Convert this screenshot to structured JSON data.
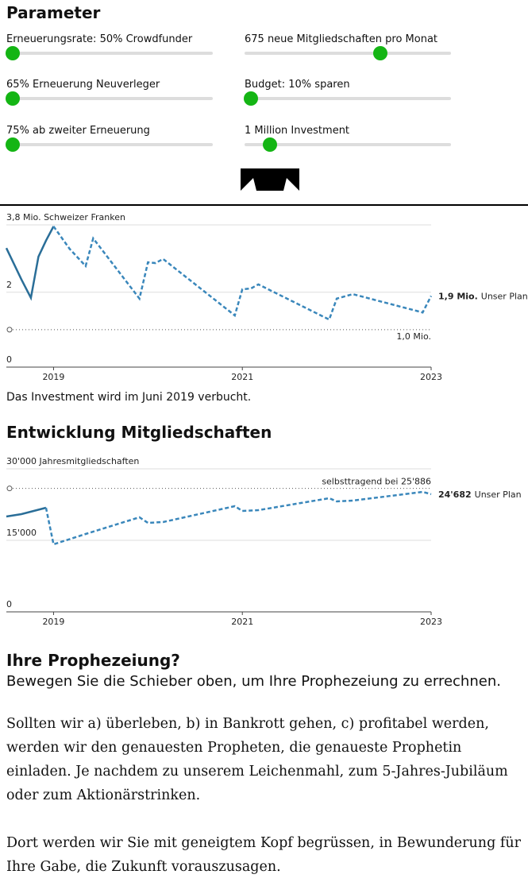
{
  "header": {
    "title": "Parameter"
  },
  "sliders": [
    {
      "label": "Erneuerungsrate: 50% Crowdfunder"
    },
    {
      "label": "675 neue Mitgliedschaften pro Monat"
    },
    {
      "label": "65% Erneuerung Neuverleger"
    },
    {
      "label": "Budget: 10% sparen"
    },
    {
      "label": "75% ab zweiter Erneuerung"
    },
    {
      "label": "1 Million Investment"
    }
  ],
  "chart_data": [
    {
      "type": "line",
      "xlim": [
        2018.5,
        2023
      ],
      "xticks": [
        2019,
        2021,
        2023
      ],
      "ylim": [
        0,
        3.8
      ],
      "yticks": [
        {
          "value": 3.8,
          "label": "3,8 Mio. Schweizer Franken"
        },
        2,
        0
      ],
      "grid": true,
      "reference_line": {
        "value": 1.0,
        "label": "1,0 Mio.",
        "label_position": "below"
      },
      "series": [
        {
          "color": "#2a6e98",
          "line_style": "solid",
          "x": [
            2018.5,
            2018.66,
            2018.76,
            2018.84,
            2018.92,
            2019.0
          ],
          "values": [
            3.18,
            2.34,
            1.85,
            2.95,
            3.38,
            3.76
          ]
        },
        {
          "name": "Unser Plan",
          "color": "#3a87bb",
          "line_style": "dashed",
          "x": [
            2019.0,
            2019.17,
            2019.34,
            2019.42,
            2019.91,
            2020.0,
            2020.08,
            2020.16,
            2020.92,
            2021.0,
            2021.09,
            2021.17,
            2021.92,
            2022.0,
            2022.17,
            2022.91,
            2023.0
          ],
          "values": [
            3.76,
            3.16,
            2.7,
            3.44,
            1.83,
            2.8,
            2.78,
            2.89,
            1.38,
            2.08,
            2.1,
            2.21,
            1.27,
            1.83,
            1.95,
            1.46,
            1.9
          ],
          "value_labels": [
            null,
            null,
            null,
            null,
            null,
            null,
            null,
            null,
            null,
            null,
            null,
            null,
            null,
            null,
            null,
            null,
            "1,9 Mio."
          ]
        }
      ],
      "caption": "Das Investment wird im Juni 2019 verbucht."
    },
    {
      "type": "line",
      "title": "Entwicklung Mitgliedschaften",
      "xlim": [
        2018.5,
        2023
      ],
      "xticks": [
        2019,
        2021,
        2023
      ],
      "ylim": [
        0,
        30000
      ],
      "yticks": [
        {
          "value": 30000,
          "label": "30'000 Jahresmitgliedschaften"
        },
        {
          "value": 15000,
          "label": "15'000"
        },
        0
      ],
      "grid": true,
      "reference_line": {
        "value": 25886,
        "label": "selbsttragend bei 25'886",
        "label_position": "above"
      },
      "series": [
        {
          "color": "#2a6e98",
          "line_style": "solid",
          "x": [
            2018.5,
            2018.66,
            2018.92
          ],
          "values": [
            20000,
            20500,
            21833
          ]
        },
        {
          "name": "Unser Plan",
          "color": "#3a87bb",
          "line_style": "dashed",
          "x": [
            2018.92,
            2019.0,
            2019.34,
            2019.91,
            2020.0,
            2020.16,
            2020.92,
            2021.0,
            2021.17,
            2021.92,
            2022.0,
            2022.17,
            2022.91,
            2023.0
          ],
          "values": [
            21833,
            14167,
            16333,
            19833,
            18667,
            18833,
            22167,
            21167,
            21333,
            23833,
            23167,
            23333,
            25167,
            24682
          ],
          "value_labels": [
            null,
            null,
            null,
            null,
            null,
            null,
            null,
            null,
            null,
            null,
            null,
            null,
            null,
            "24'682"
          ]
        }
      ]
    }
  ],
  "prophecy": {
    "title": "Ihre Prophezeiung?",
    "intro": "Bewegen Sie die Schieber oben, um Ihre Prophezeiung zu errechnen.",
    "paragraphs": [
      "Sollten wir a) überleben, b) in Bankrott gehen, c) profitabel werden, werden wir den genauesten Propheten, die genaueste Prophetin einladen. Je nachdem zu unserem Leichenmahl, zum 5-Jahres-Jubiläum oder zum Aktionärstrinken.",
      "Dort werden wir Sie mit geneigtem Kopf begrüssen, in Bewunderung für Ihre Gabe, die Zukunft vorauszusagen."
    ]
  }
}
